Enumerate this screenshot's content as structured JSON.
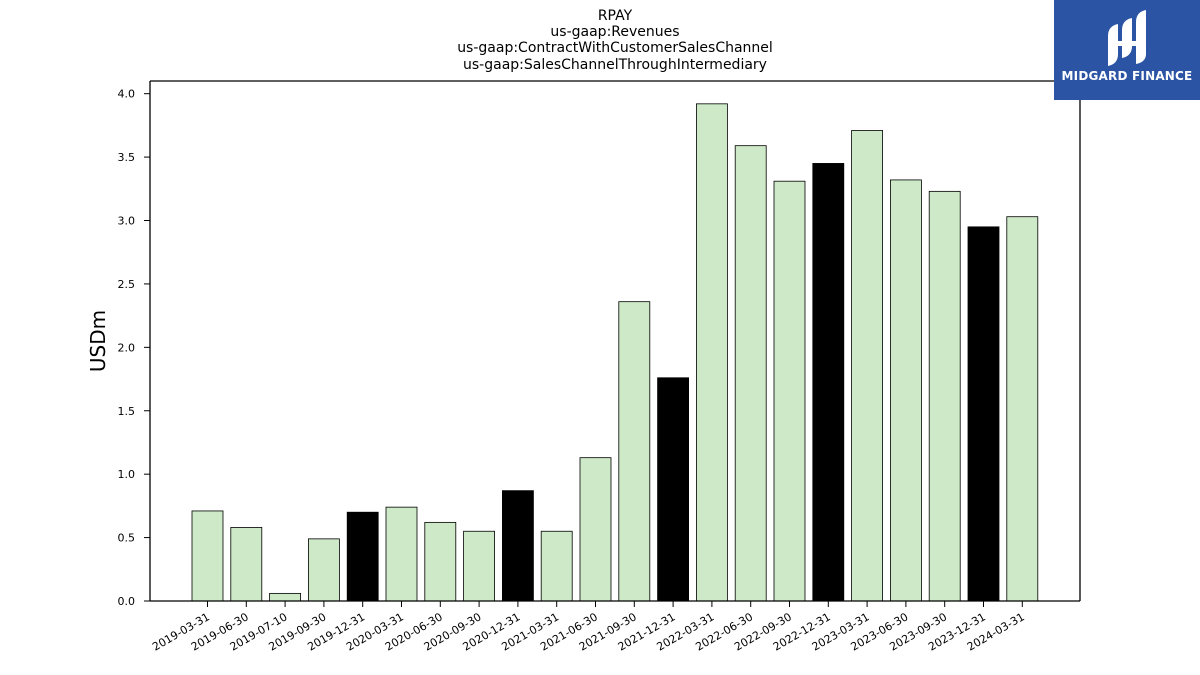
{
  "chart_data": {
    "type": "bar",
    "title_lines": [
      "RPAY",
      "us-gaap:Revenues",
      "us-gaap:ContractWithCustomerSalesChannel",
      "us-gaap:SalesChannelThroughIntermediary"
    ],
    "xlabel": "",
    "ylabel": "USDm",
    "ylim": [
      0,
      4.1
    ],
    "yticks": [
      "0.0",
      "0.5",
      "1.0",
      "1.5",
      "2.0",
      "2.5",
      "3.0",
      "3.5",
      "4.0"
    ],
    "grid": false,
    "categories": [
      "2019-03-31",
      "2019-06-30",
      "2019-07-10",
      "2019-09-30",
      "2019-12-31",
      "2020-03-31",
      "2020-06-30",
      "2020-09-30",
      "2020-12-31",
      "2021-03-31",
      "2021-06-30",
      "2021-09-30",
      "2021-12-31",
      "2022-03-31",
      "2022-06-30",
      "2022-09-30",
      "2022-12-31",
      "2023-03-31",
      "2023-06-30",
      "2023-09-30",
      "2023-12-31",
      "2024-03-31"
    ],
    "values": [
      0.71,
      0.58,
      0.06,
      0.49,
      0.7,
      0.74,
      0.62,
      0.55,
      0.87,
      0.55,
      1.13,
      2.36,
      1.76,
      3.92,
      3.59,
      3.31,
      3.45,
      3.71,
      3.32,
      3.23,
      2.95,
      3.03
    ],
    "bar_colors": {
      "quarter": "#cde9c7",
      "year_end": "#000000"
    },
    "year_end_flags": [
      false,
      false,
      false,
      false,
      true,
      false,
      false,
      false,
      true,
      false,
      false,
      false,
      true,
      false,
      false,
      false,
      true,
      false,
      false,
      false,
      true,
      false
    ]
  },
  "logo": {
    "text": "MIDGARD FINANCE",
    "bg_color": "#2b55a4"
  }
}
